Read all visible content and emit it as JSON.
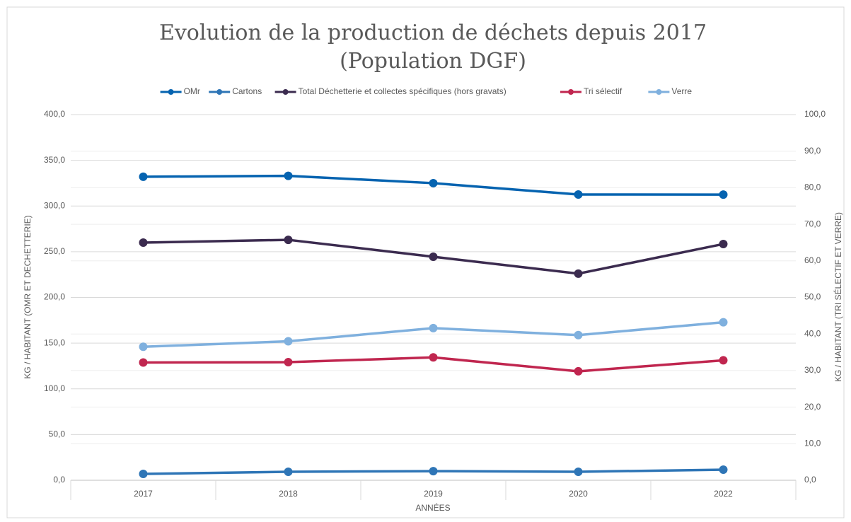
{
  "chart_data": {
    "type": "line",
    "title": "Evolution de la production de déchets depuis 2017",
    "subtitle": "(Population DGF)",
    "x_label": "ANNÉES",
    "y_label": "KG / HABITANT (OMR ET DECHETTERIE)",
    "y2_label": "KG / HABITANT (TRI SÉLECTIF ET VERRE)",
    "categories": [
      "2017",
      "2018",
      "2019",
      "2020",
      "2022"
    ],
    "series": [
      {
        "name": "OMr",
        "color": "#0563b0",
        "values": [
          332,
          333,
          325,
          312.6,
          312.5
        ]
      },
      {
        "name": "Cartons",
        "color": "#2e75b6",
        "values": [
          7,
          9.3,
          10,
          9.3,
          11.6
        ]
      },
      {
        "name": "Total Déchetterie et collectes spécifiques (hors gravats)",
        "color": "#3b2b4f",
        "values": [
          260,
          263,
          244.5,
          226,
          258.4
        ]
      },
      {
        "name": "Tri sélectif",
        "color": "#c0264f",
        "axis": "y2",
        "values": [
          32.2,
          32.3,
          33.6,
          29.8,
          32.8
        ]
      },
      {
        "name": "Verre",
        "color": "#7fb0de",
        "axis": "y2",
        "values": [
          36.5,
          38,
          41.6,
          39.7,
          43.2
        ]
      }
    ],
    "ylim": [
      0,
      400
    ],
    "yticks": [
      {
        "value": 0,
        "label": "0,0"
      },
      {
        "value": 50,
        "label": "50,0"
      },
      {
        "value": 100,
        "label": "100,0"
      },
      {
        "value": 150,
        "label": "150,0"
      },
      {
        "value": 200,
        "label": "200,0"
      },
      {
        "value": 250,
        "label": "250,0"
      },
      {
        "value": 300,
        "label": "300,0"
      },
      {
        "value": 350,
        "label": "350,0"
      },
      {
        "value": 400,
        "label": "400,0"
      }
    ],
    "y2lim": [
      0,
      100
    ],
    "y2ticks": [
      {
        "value": 0,
        "label": "0,0"
      },
      {
        "value": 10,
        "label": "10,0"
      },
      {
        "value": 20,
        "label": "20,0"
      },
      {
        "value": 30,
        "label": "30,0"
      },
      {
        "value": 40,
        "label": "40,0"
      },
      {
        "value": 50,
        "label": "50,0"
      },
      {
        "value": 60,
        "label": "60,0"
      },
      {
        "value": 70,
        "label": "70,0"
      },
      {
        "value": 80,
        "label": "80,0"
      },
      {
        "value": 90,
        "label": "90,0"
      },
      {
        "value": 100,
        "label": "100,0"
      }
    ],
    "grid": true,
    "legend": "top"
  }
}
